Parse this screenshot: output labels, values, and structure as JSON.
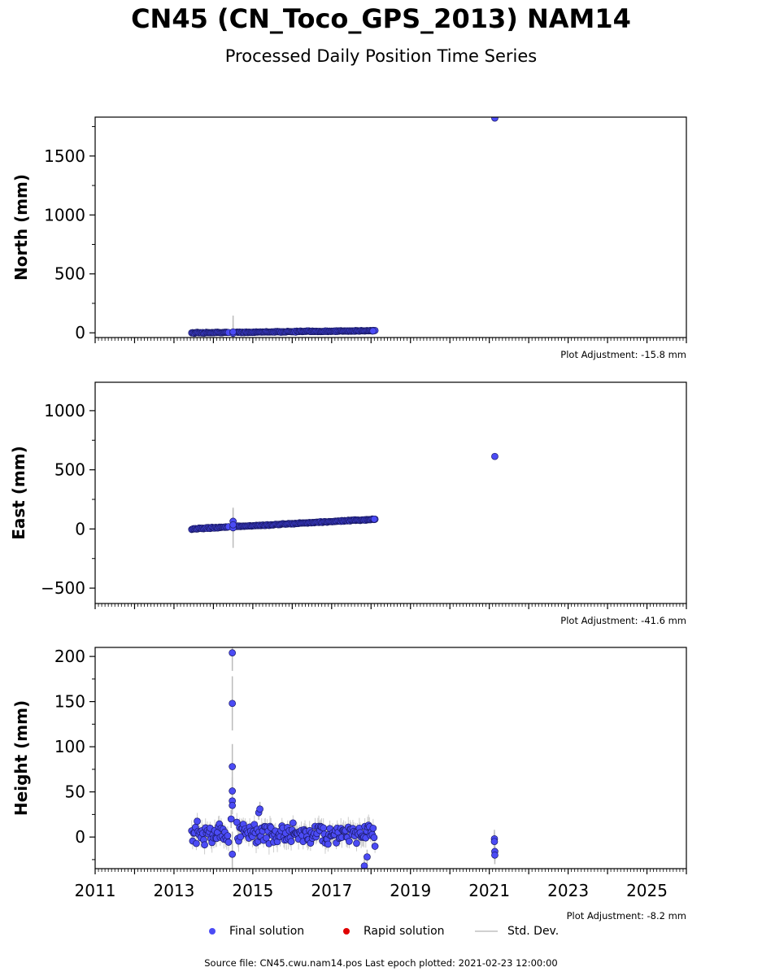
{
  "title": "CN45 (CN_Toco_GPS_2013) NAM14",
  "subtitle": "Processed Daily Position Time Series",
  "legend": {
    "final_label": "Final solution",
    "rapid_label": "Rapid solution",
    "std_label": "Std. Dev."
  },
  "footer": "Source file: CN45.cwu.nam14.pos  Last epoch plotted: 2021-02-23 12:00:00",
  "colors": {
    "final": "#4b4bf5",
    "final_edge": "#1a1a66",
    "rapid": "#e00000",
    "std": "#cccccc"
  },
  "chart_data": [
    {
      "type": "scatter",
      "ylabel": "North (mm)",
      "adjustment": "Plot Adjustment: -15.8 mm",
      "xlim": [
        2011,
        2026
      ],
      "ylim": [
        -40,
        1830
      ],
      "yticks": [
        0,
        500,
        1000,
        1500
      ],
      "yminor": 250,
      "xticks": [
        2011,
        2013,
        2015,
        2017,
        2019,
        2021,
        2023,
        2025
      ],
      "show_xtick_labels": false,
      "trend": {
        "x": [
          2013.45,
          2018.1
        ],
        "y": [
          0,
          18
        ],
        "noise": 4
      },
      "points": [
        {
          "x": 2014.5,
          "y": -4,
          "err": 150
        },
        {
          "x": 2014.5,
          "y": 8,
          "err": 60
        },
        {
          "x": 2018.05,
          "y": 16,
          "err": 5
        },
        {
          "x": 2021.14,
          "y": 1822,
          "err": 6
        }
      ]
    },
    {
      "type": "scatter",
      "ylabel": "East (mm)",
      "adjustment": "Plot Adjustment: -41.6 mm",
      "xlim": [
        2011,
        2026
      ],
      "ylim": [
        -630,
        1240
      ],
      "yticks": [
        -500,
        0,
        500,
        1000
      ],
      "yminor": 250,
      "xticks": [
        2011,
        2013,
        2015,
        2017,
        2019,
        2021,
        2023,
        2025
      ],
      "show_xtick_labels": false,
      "trend": {
        "x": [
          2013.45,
          2018.1
        ],
        "y": [
          0,
          82
        ],
        "noise": 4
      },
      "points": [
        {
          "x": 2014.5,
          "y": 65,
          "err": 100
        },
        {
          "x": 2014.5,
          "y": 10,
          "err": 170
        },
        {
          "x": 2014.5,
          "y": 35,
          "err": 40
        },
        {
          "x": 2018.08,
          "y": 83,
          "err": 5
        },
        {
          "x": 2021.14,
          "y": 613,
          "err": 6
        }
      ]
    },
    {
      "type": "scatter",
      "ylabel": "Height (mm)",
      "adjustment": "Plot Adjustment: -8.2 mm",
      "xlim": [
        2011,
        2026
      ],
      "ylim": [
        -35,
        210
      ],
      "yticks": [
        0,
        50,
        100,
        150,
        200
      ],
      "yminor": 25,
      "xticks": [
        2011,
        2013,
        2015,
        2017,
        2019,
        2021,
        2023,
        2025
      ],
      "show_xtick_labels": true,
      "trend": {
        "x": [
          2013.45,
          2018.1
        ],
        "y": [
          5,
          3
        ],
        "noise": 11
      },
      "points": [
        {
          "x": 2014.48,
          "y": 204,
          "err": 20
        },
        {
          "x": 2014.48,
          "y": 148,
          "err": 30
        },
        {
          "x": 2014.48,
          "y": 78,
          "err": 25
        },
        {
          "x": 2014.48,
          "y": 51,
          "err": 15
        },
        {
          "x": 2014.48,
          "y": 40,
          "err": 10
        },
        {
          "x": 2014.48,
          "y": 35,
          "err": 10
        },
        {
          "x": 2014.48,
          "y": -19,
          "err": 25
        },
        {
          "x": 2014.45,
          "y": 20,
          "err": 10
        },
        {
          "x": 2015.15,
          "y": 27,
          "err": 8
        },
        {
          "x": 2015.18,
          "y": 31,
          "err": 8
        },
        {
          "x": 2017.83,
          "y": -32,
          "err": 8
        },
        {
          "x": 2017.9,
          "y": -22,
          "err": 8
        },
        {
          "x": 2021.13,
          "y": -2,
          "err": 10
        },
        {
          "x": 2021.13,
          "y": -5,
          "err": 10
        },
        {
          "x": 2021.14,
          "y": -16,
          "err": 10
        },
        {
          "x": 2021.14,
          "y": -20,
          "err": 10
        }
      ]
    }
  ]
}
